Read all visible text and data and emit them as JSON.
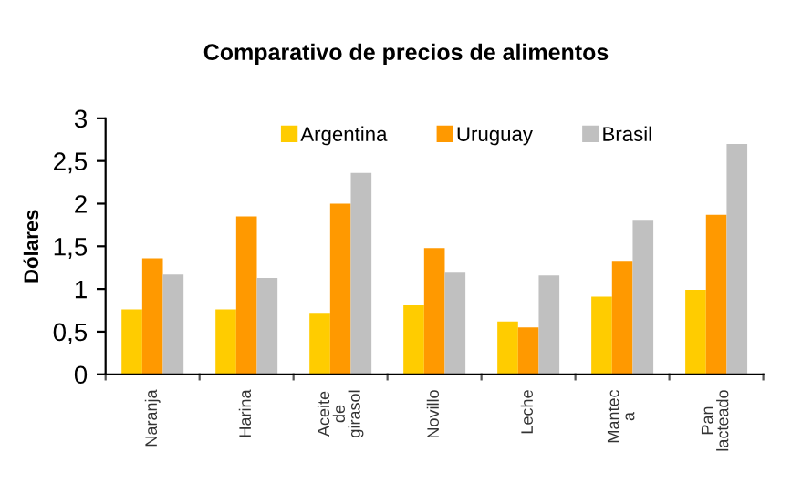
{
  "chart_data": {
    "type": "bar",
    "title": "Comparativo de precios de alimentos",
    "ylabel": "Dólares",
    "categories": [
      "Naranja",
      "Harina",
      "Aceite\nde\ngirasol",
      "Novillo",
      "Leche",
      "Mantec\na",
      "Pan\nlacteado"
    ],
    "series": [
      {
        "name": "Argentina",
        "color": "#ffcc00",
        "values": [
          0.76,
          0.76,
          0.71,
          0.81,
          0.62,
          0.91,
          0.99
        ]
      },
      {
        "name": "Uruguay",
        "color": "#ff9900",
        "values": [
          1.36,
          1.85,
          2.0,
          1.48,
          0.55,
          1.33,
          1.87
        ]
      },
      {
        "name": "Brasil",
        "color": "#c0c0c0",
        "values": [
          1.17,
          1.13,
          2.36,
          1.19,
          1.16,
          1.81,
          2.7
        ]
      }
    ],
    "ylim": [
      0,
      3
    ],
    "yticks": [
      0,
      {
        "value": 0.5,
        "label": "0,5"
      },
      1,
      {
        "value": 1.5,
        "label": "1,5"
      },
      2,
      {
        "value": 2.5,
        "label": "2,5"
      },
      3
    ],
    "legend": "top",
    "grid": false
  }
}
